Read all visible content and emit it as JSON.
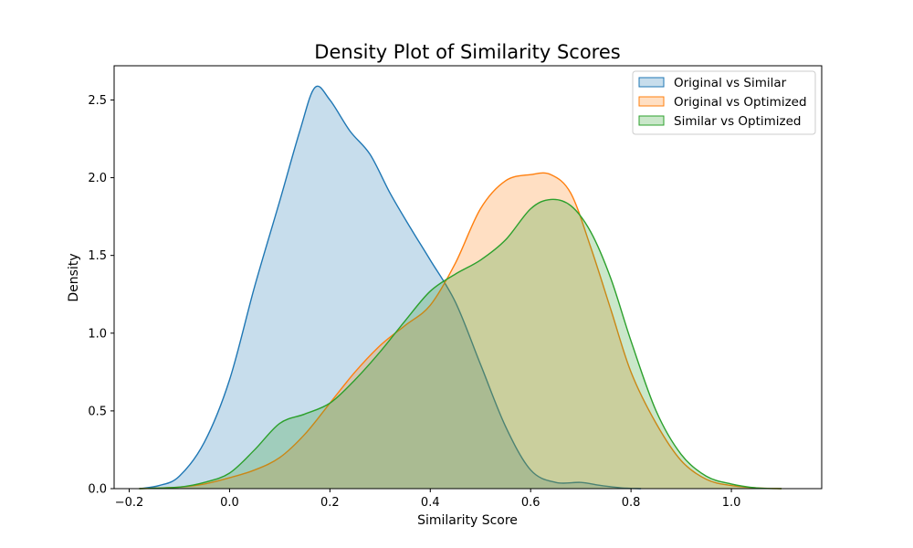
{
  "chart_data": {
    "type": "area",
    "title": "Density Plot of Similarity Scores",
    "xlabel": "Similarity Score",
    "ylabel": "Density",
    "xlim": [
      -0.23,
      1.18
    ],
    "ylim": [
      0,
      2.72
    ],
    "xticks": [
      -0.2,
      0.0,
      0.2,
      0.4,
      0.6,
      0.8,
      1.0
    ],
    "xtick_labels": [
      "−0.2",
      "0.0",
      "0.2",
      "0.4",
      "0.6",
      "0.8",
      "1.0"
    ],
    "yticks": [
      0.0,
      0.5,
      1.0,
      1.5,
      2.0,
      2.5
    ],
    "ytick_labels": [
      "0.0",
      "0.5",
      "1.0",
      "1.5",
      "2.0",
      "2.5"
    ],
    "grid": false,
    "legend_position": "top-right",
    "series": [
      {
        "name": "Original vs Similar",
        "color": "#1f77b4",
        "x": [
          -0.18,
          -0.14,
          -0.1,
          -0.05,
          0.0,
          0.05,
          0.1,
          0.14,
          0.17,
          0.2,
          0.24,
          0.28,
          0.32,
          0.36,
          0.4,
          0.45,
          0.5,
          0.55,
          0.6,
          0.65,
          0.7,
          0.74,
          0.78,
          0.82
        ],
        "y": [
          0.0,
          0.02,
          0.08,
          0.3,
          0.7,
          1.3,
          1.85,
          2.3,
          2.58,
          2.5,
          2.3,
          2.15,
          1.9,
          1.68,
          1.47,
          1.2,
          0.8,
          0.4,
          0.12,
          0.04,
          0.04,
          0.02,
          0.005,
          0.0
        ]
      },
      {
        "name": "Original vs Optimized",
        "color": "#ff7f0e",
        "x": [
          -0.18,
          -0.1,
          -0.05,
          0.0,
          0.05,
          0.1,
          0.15,
          0.2,
          0.25,
          0.3,
          0.35,
          0.4,
          0.45,
          0.5,
          0.55,
          0.6,
          0.64,
          0.68,
          0.72,
          0.76,
          0.8,
          0.85,
          0.9,
          0.95,
          1.0,
          1.05,
          1.1
        ],
        "y": [
          0.0,
          0.01,
          0.03,
          0.07,
          0.12,
          0.2,
          0.35,
          0.55,
          0.75,
          0.92,
          1.05,
          1.18,
          1.45,
          1.8,
          1.98,
          2.02,
          2.02,
          1.9,
          1.55,
          1.15,
          0.75,
          0.42,
          0.18,
          0.06,
          0.02,
          0.005,
          0.0
        ]
      },
      {
        "name": "Similar vs Optimized",
        "color": "#2ca02c",
        "x": [
          -0.18,
          -0.1,
          -0.05,
          0.0,
          0.05,
          0.1,
          0.15,
          0.2,
          0.25,
          0.3,
          0.35,
          0.4,
          0.45,
          0.5,
          0.55,
          0.6,
          0.64,
          0.68,
          0.72,
          0.76,
          0.8,
          0.85,
          0.9,
          0.95,
          1.0,
          1.05,
          1.1
        ],
        "y": [
          0.0,
          0.01,
          0.04,
          0.1,
          0.25,
          0.42,
          0.48,
          0.55,
          0.7,
          0.88,
          1.08,
          1.27,
          1.38,
          1.47,
          1.6,
          1.8,
          1.86,
          1.82,
          1.65,
          1.35,
          0.95,
          0.5,
          0.22,
          0.08,
          0.03,
          0.005,
          0.0
        ]
      }
    ]
  }
}
